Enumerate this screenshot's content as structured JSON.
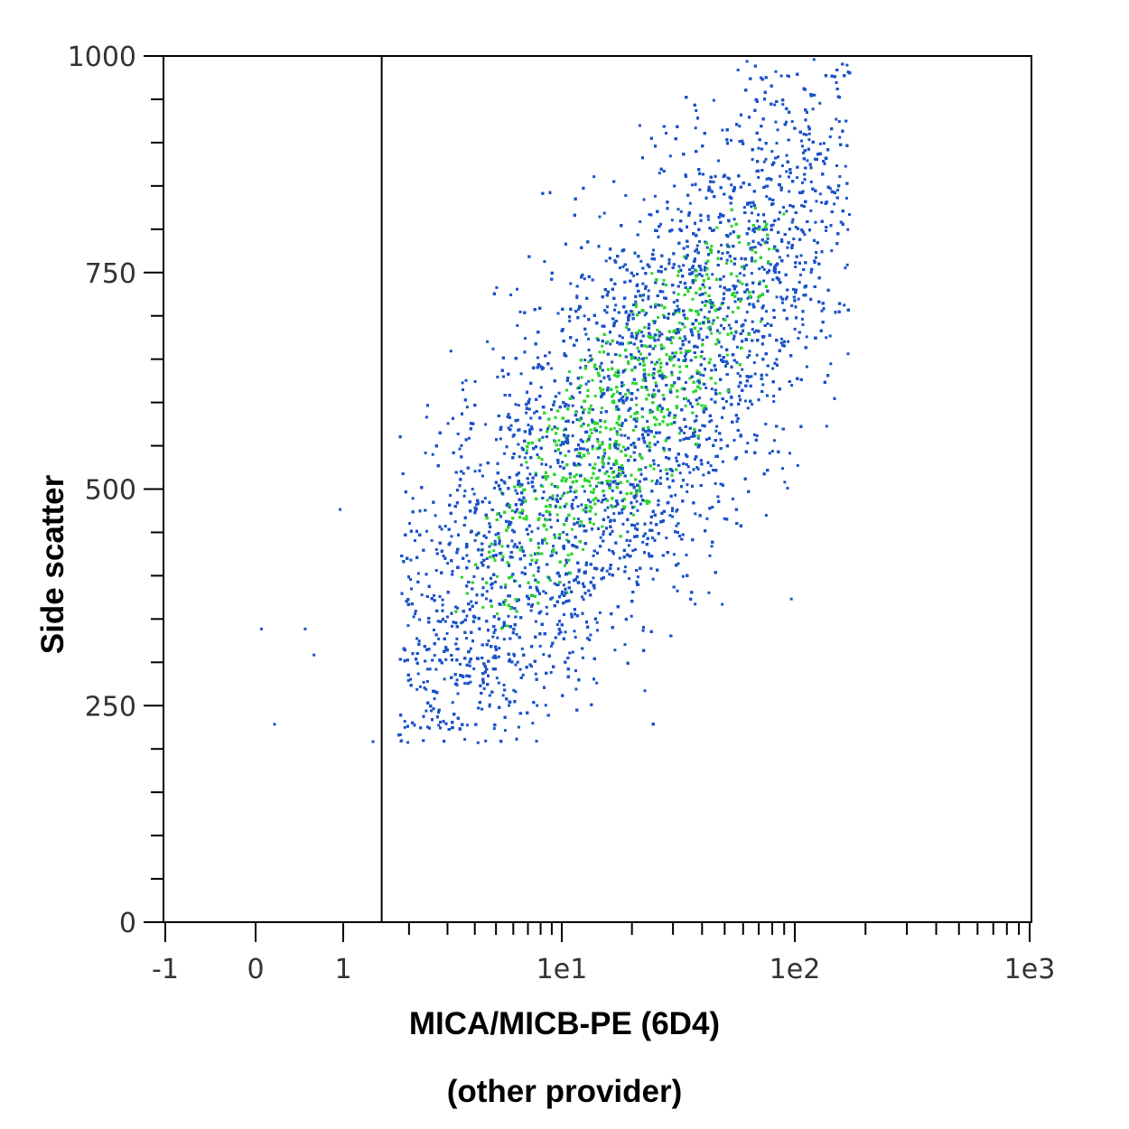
{
  "chart_data": {
    "type": "scatter",
    "plot_style": "flow cytometry density dot plot",
    "xlabel_line1": "MICA/MICB-PE (6D4)",
    "xlabel_line2": "(other provider)",
    "ylabel": "Side scatter",
    "x_scale": "biexponential (linear near zero, log above)",
    "x_ticks": [
      {
        "label": "-1",
        "value": -1
      },
      {
        "label": "0",
        "value": 0
      },
      {
        "label": "1",
        "value": 1
      },
      {
        "label": "1e1",
        "value": 10
      },
      {
        "label": "1e2",
        "value": 100
      },
      {
        "label": "1e3",
        "value": 1000
      }
    ],
    "y_ticks": [
      {
        "label": "0",
        "value": 0
      },
      {
        "label": "250",
        "value": 250
      },
      {
        "label": "500",
        "value": 500
      },
      {
        "label": "750",
        "value": 750
      },
      {
        "label": "1000",
        "value": 1000
      }
    ],
    "ylim": [
      0,
      1000
    ],
    "gate_line_x": 1.5,
    "population": {
      "x_center": 18,
      "y_center": 580,
      "x_range": [
        2.5,
        170
      ],
      "y_range": [
        200,
        1000
      ],
      "colors": {
        "low_density": "#1a52c8",
        "high_density": "#2ad62a"
      }
    },
    "outlier_points": [
      {
        "x": 0.05,
        "y": 340
      },
      {
        "x": 0.2,
        "y": 230
      },
      {
        "x": 0.55,
        "y": 340
      },
      {
        "x": 0.65,
        "y": 310
      },
      {
        "x": 0.95,
        "y": 478
      },
      {
        "x": 1.35,
        "y": 210
      }
    ],
    "grid": false
  }
}
